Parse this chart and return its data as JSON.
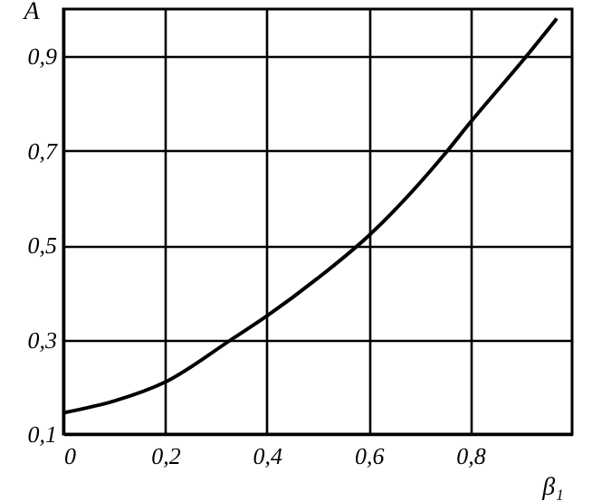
{
  "chart_data": {
    "type": "line",
    "xlabel": "β₁",
    "ylabel": "A",
    "x": [
      0,
      0.1,
      0.2,
      0.33,
      0.4,
      0.5,
      0.6,
      0.755,
      0.8,
      0.91,
      0.97
    ],
    "series": [
      {
        "color": "#000000",
        "values": [
          0.145,
          0.17,
          0.21,
          0.3,
          0.35,
          0.43,
          0.52,
          0.7,
          0.76,
          0.9,
          0.98
        ]
      }
    ],
    "xlim": [
      0,
      1
    ],
    "ylim": [
      0.1,
      1
    ],
    "xticks": [
      0,
      {
        "value": 0.2,
        "label": "0,2"
      },
      {
        "value": 0.4,
        "label": "0,4"
      },
      {
        "value": 0.6,
        "label": "0,6"
      },
      {
        "value": 0.8,
        "label": "0,8"
      }
    ],
    "yticks": [
      {
        "value": 0.1,
        "label": "0,1"
      },
      {
        "value": 0.3,
        "label": "0,3"
      },
      {
        "value": 0.5,
        "label": "0,5"
      },
      {
        "value": 0.7,
        "label": "0,7"
      },
      {
        "value": 0.9,
        "label": "0,9"
      }
    ],
    "grid": true,
    "line_style": "solid"
  }
}
